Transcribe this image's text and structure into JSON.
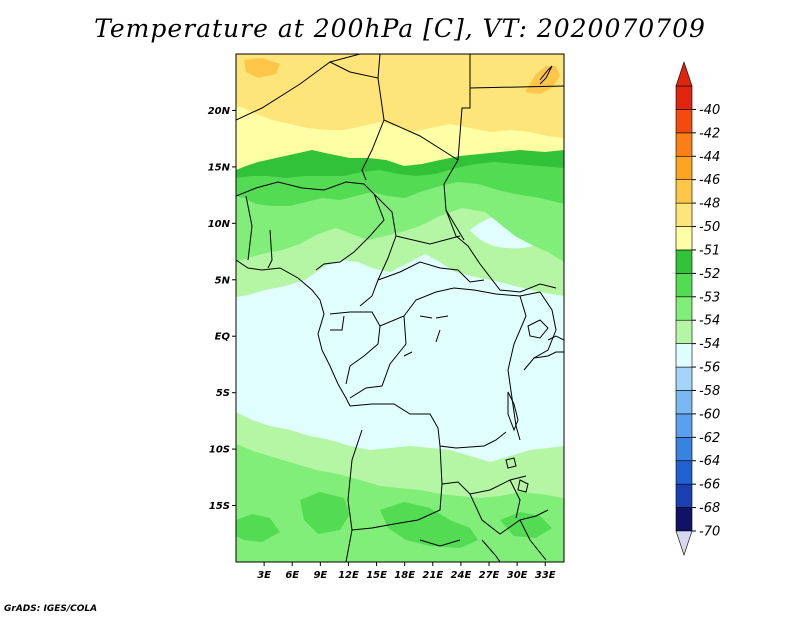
{
  "title": "Temperature at 200hPa [C], VT: 2020070709",
  "credit": "GrADS: IGES/COLA",
  "map": {
    "lat_range": [
      -20,
      25
    ],
    "lon_range": [
      0,
      35
    ],
    "lat_ticks": [
      {
        "lat": 20,
        "label": "20N"
      },
      {
        "lat": 15,
        "label": "15N"
      },
      {
        "lat": 10,
        "label": "10N"
      },
      {
        "lat": 5,
        "label": "5N"
      },
      {
        "lat": 0,
        "label": "EQ"
      },
      {
        "lat": -5,
        "label": "5S"
      },
      {
        "lat": -10,
        "label": "10S"
      },
      {
        "lat": -15,
        "label": "15S"
      }
    ],
    "lon_ticks": [
      {
        "lon": 3,
        "label": "3E"
      },
      {
        "lon": 6,
        "label": "6E"
      },
      {
        "lon": 9,
        "label": "9E"
      },
      {
        "lon": 12,
        "label": "12E"
      },
      {
        "lon": 15,
        "label": "15E"
      },
      {
        "lon": 18,
        "label": "18E"
      },
      {
        "lon": 21,
        "label": "21E"
      },
      {
        "lon": 24,
        "label": "24E"
      },
      {
        "lon": 27,
        "label": "27E"
      },
      {
        "lon": 30,
        "label": "30E"
      },
      {
        "lon": 33,
        "label": "33E"
      }
    ]
  },
  "colorbar": {
    "colors": [
      "#111166",
      "#1a3fb0",
      "#2060d0",
      "#3a82e0",
      "#5aa0ee",
      "#7ab8f4",
      "#a4d4fa",
      "#e0fefe",
      "#b4f6a4",
      "#80ee78",
      "#54db54",
      "#32c23a",
      "#fefea4",
      "#fee57a",
      "#fdc648",
      "#fca422",
      "#fb7e16",
      "#f54a0e",
      "#e0240e"
    ],
    "labels": [
      "-70",
      "-68",
      "-66",
      "-64",
      "-62",
      "-60",
      "-58",
      "-56",
      "-54",
      "-54",
      "-53",
      "-52",
      "-51",
      "-50",
      "-48",
      "-46",
      "-44",
      "-42",
      "-40"
    ]
  }
}
